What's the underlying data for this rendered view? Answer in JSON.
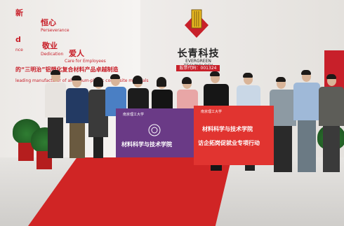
{
  "wall": {
    "slogan_1": "恒心",
    "slogan_1_en": "Perseverance",
    "slogan_2": "敬业",
    "slogan_2_en": "Dedication",
    "slogan_3": "爱人",
    "slogan_3_en": "Care for Employees",
    "slogan_left_1": "新",
    "slogan_left_2": "d",
    "slogan_left_3": "nce",
    "headline": "的“三明治”铝塑化复合材料产品卓越制造",
    "headline_en": "leading manufacturer of aluminum-plastic composite materials"
  },
  "logo": {
    "name": "长青科技",
    "name_en": "EVERGREEN TECHNOLOGY",
    "code": "股票代码：001324"
  },
  "banners": {
    "purple_school": "南京理工大学",
    "purple_main": "材料科学与技术学院",
    "red_school": "南京理工大学",
    "red_main_1": "材料科学与技术学院",
    "red_main_2": "访企拓岗促就业专项行动"
  },
  "colors": {
    "brand_red": "#c8202a",
    "purple_banner": "#6a3a86",
    "red_banner": "#e13430",
    "carpet": "#d02525"
  }
}
